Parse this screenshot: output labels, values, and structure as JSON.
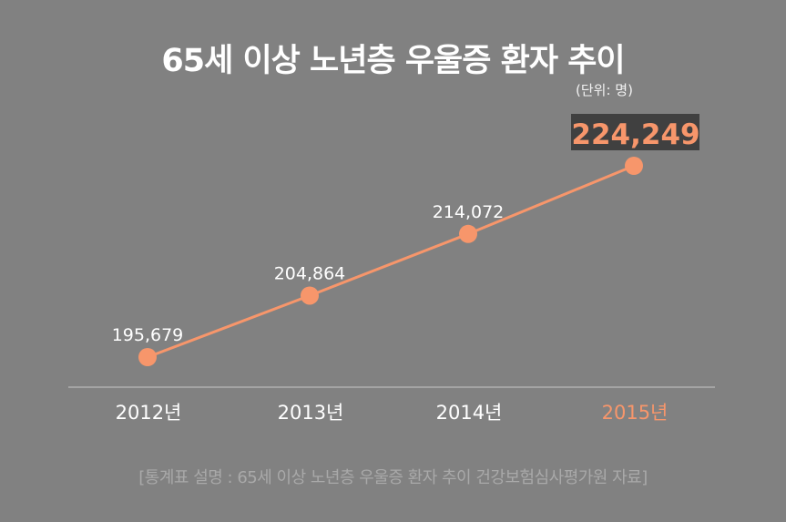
{
  "chart_data": {
    "type": "line",
    "title": "65세 이상 노년층 우울증 환자 추이",
    "unit_label": "(단위: 명)",
    "categories": [
      "2012년",
      "2013년",
      "2014년",
      "2015년"
    ],
    "values": [
      195679,
      204864,
      214072,
      224249
    ],
    "value_labels": [
      "195,679",
      "204,864",
      "214,072",
      "224,249"
    ],
    "highlight_index": 3,
    "grid": false,
    "footnote": "[통계표 설명 : 65세 이상 노년층 우울증 환자 추이 건강보험심사평가원 자료]",
    "colors": {
      "background": "#818181",
      "line": "#f7966b",
      "highlight_box": "#404040",
      "text": "#ffffff",
      "footnote": "#a9a9a9"
    }
  }
}
